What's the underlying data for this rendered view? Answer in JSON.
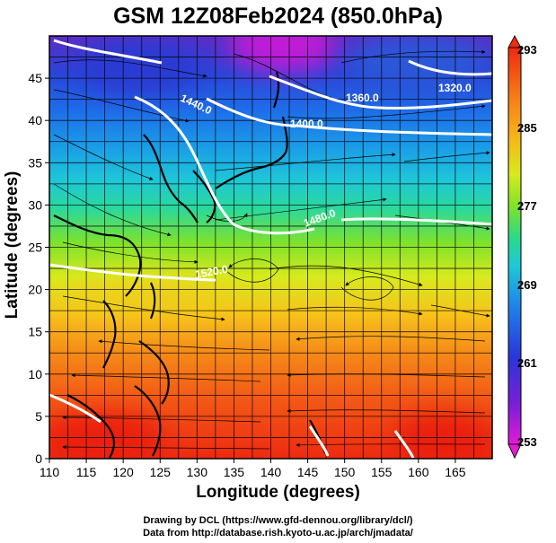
{
  "title": "GSM 12Z08Feb2024 (850.0hPa)",
  "x_axis": {
    "label": "Longitude (degrees)",
    "ticks": [
      "110",
      "115",
      "120",
      "125",
      "130",
      "135",
      "140",
      "145",
      "150",
      "155",
      "160",
      "165"
    ]
  },
  "y_axis": {
    "label": "Latitude  (degrees)",
    "ticks": [
      "0",
      "5",
      "10",
      "15",
      "20",
      "25",
      "30",
      "35",
      "40",
      "45"
    ]
  },
  "contour_labels": [
    "1320.0",
    "1360.0",
    "1400.0",
    "1440.0",
    "1480.0",
    "1520.0"
  ],
  "colorbar": {
    "ticks": [
      "253",
      "261",
      "269",
      "277",
      "285",
      "293"
    ],
    "colors": [
      "#e21bd6",
      "#7a1fd6",
      "#2a36d8",
      "#1f7ee8",
      "#1fc8d8",
      "#2bd98a",
      "#7fe22a",
      "#d8ea1e",
      "#f7b21a",
      "#f57a18",
      "#ee2a10"
    ]
  },
  "credits": {
    "line1": "Drawing by DCL (https://www.gfd-dennou.org/library/dcl/)",
    "line2": "Data from http://database.rish.kyoto-u.ac.jp/arch/jmadata/"
  }
}
